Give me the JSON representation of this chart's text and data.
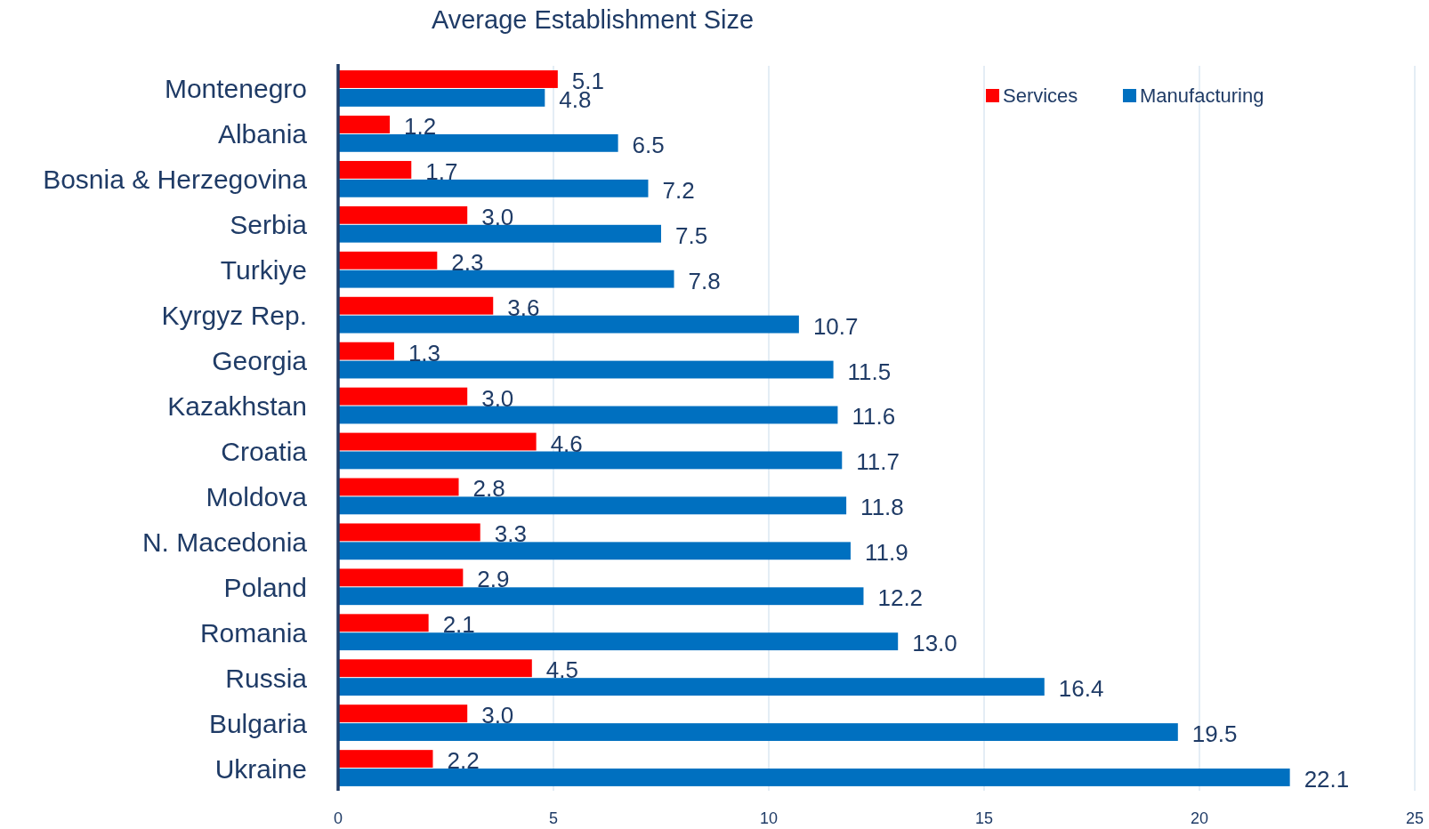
{
  "chart_data": {
    "type": "bar",
    "title": "Average Establishment Size",
    "orientation": "horizontal",
    "categories": [
      "Montenegro",
      "Albania",
      "Bosnia & Herzegovina",
      "Serbia",
      "Turkiye",
      "Kyrgyz Rep.",
      "Georgia",
      "Kazakhstan",
      "Croatia",
      "Moldova",
      "N. Macedonia",
      "Poland",
      "Romania",
      "Russia",
      "Bulgaria",
      "Ukraine"
    ],
    "series": [
      {
        "name": "Services",
        "color": "#ff0000",
        "values": [
          5.1,
          1.2,
          1.7,
          3.0,
          2.3,
          3.6,
          1.3,
          3.0,
          4.6,
          2.8,
          3.3,
          2.9,
          2.1,
          4.5,
          3.0,
          2.2
        ],
        "value_labels": [
          "5.1",
          "1.2",
          "1.7",
          "3.0",
          "2.3",
          "3.6",
          "1.3",
          "3.0",
          "4.6",
          "2.8",
          "3.3",
          "2.9",
          "2.1",
          "4.5",
          "3.0",
          "2.2"
        ]
      },
      {
        "name": "Manufacturing",
        "color": "#0070c0",
        "values": [
          4.8,
          6.5,
          7.2,
          7.5,
          7.8,
          10.7,
          11.5,
          11.6,
          11.7,
          11.8,
          11.9,
          12.2,
          13.0,
          16.4,
          19.5,
          22.1
        ],
        "value_labels": [
          "4.8",
          "6.5",
          "7.2",
          "7.5",
          "7.8",
          "10.7",
          "11.5",
          "11.6",
          "11.7",
          "11.8",
          "11.9",
          "12.2",
          "13.0",
          "16.4",
          "19.5",
          "22.1"
        ]
      }
    ],
    "xlim": [
      0,
      25
    ],
    "xticks": [
      0,
      5,
      10,
      15,
      20,
      25
    ],
    "grid": "x",
    "legend": "top right"
  }
}
